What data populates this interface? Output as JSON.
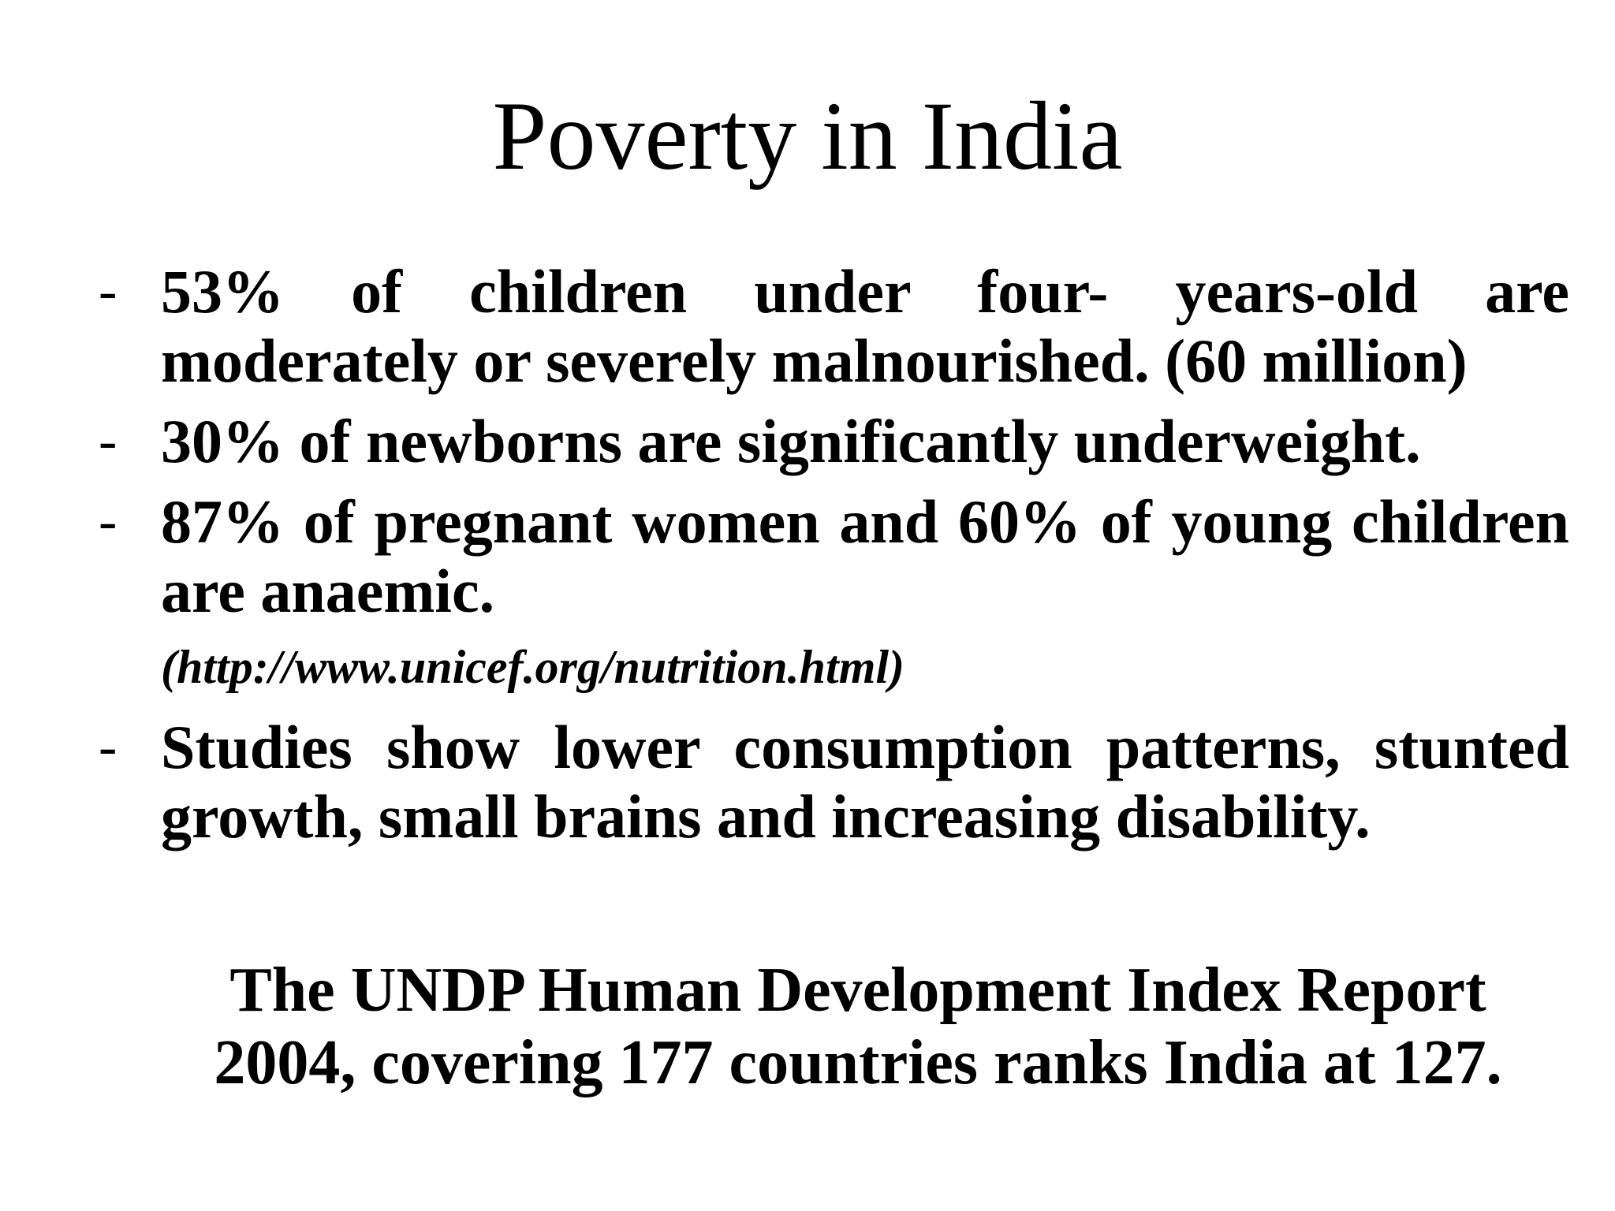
{
  "slide": {
    "title": "Poverty in India",
    "bullet_marker": "-",
    "bullets": [
      {
        "text": "53% of children under four- years-old are moderately or severely malnourished. (60 million)"
      },
      {
        "text": "30%  of newborns are significantly underweight."
      },
      {
        "text": "87% of pregnant women and 60% of young children are anaemic."
      },
      {
        "text": "Studies show lower consumption patterns, stunted growth, small brains and increasing disability."
      }
    ],
    "source": "(http://www.unicef.org/nutrition.html)",
    "footer": {
      "line1": "The UNDP Human Development Index Report",
      "line2": "2004, covering 177 countries ranks India at 127."
    }
  }
}
